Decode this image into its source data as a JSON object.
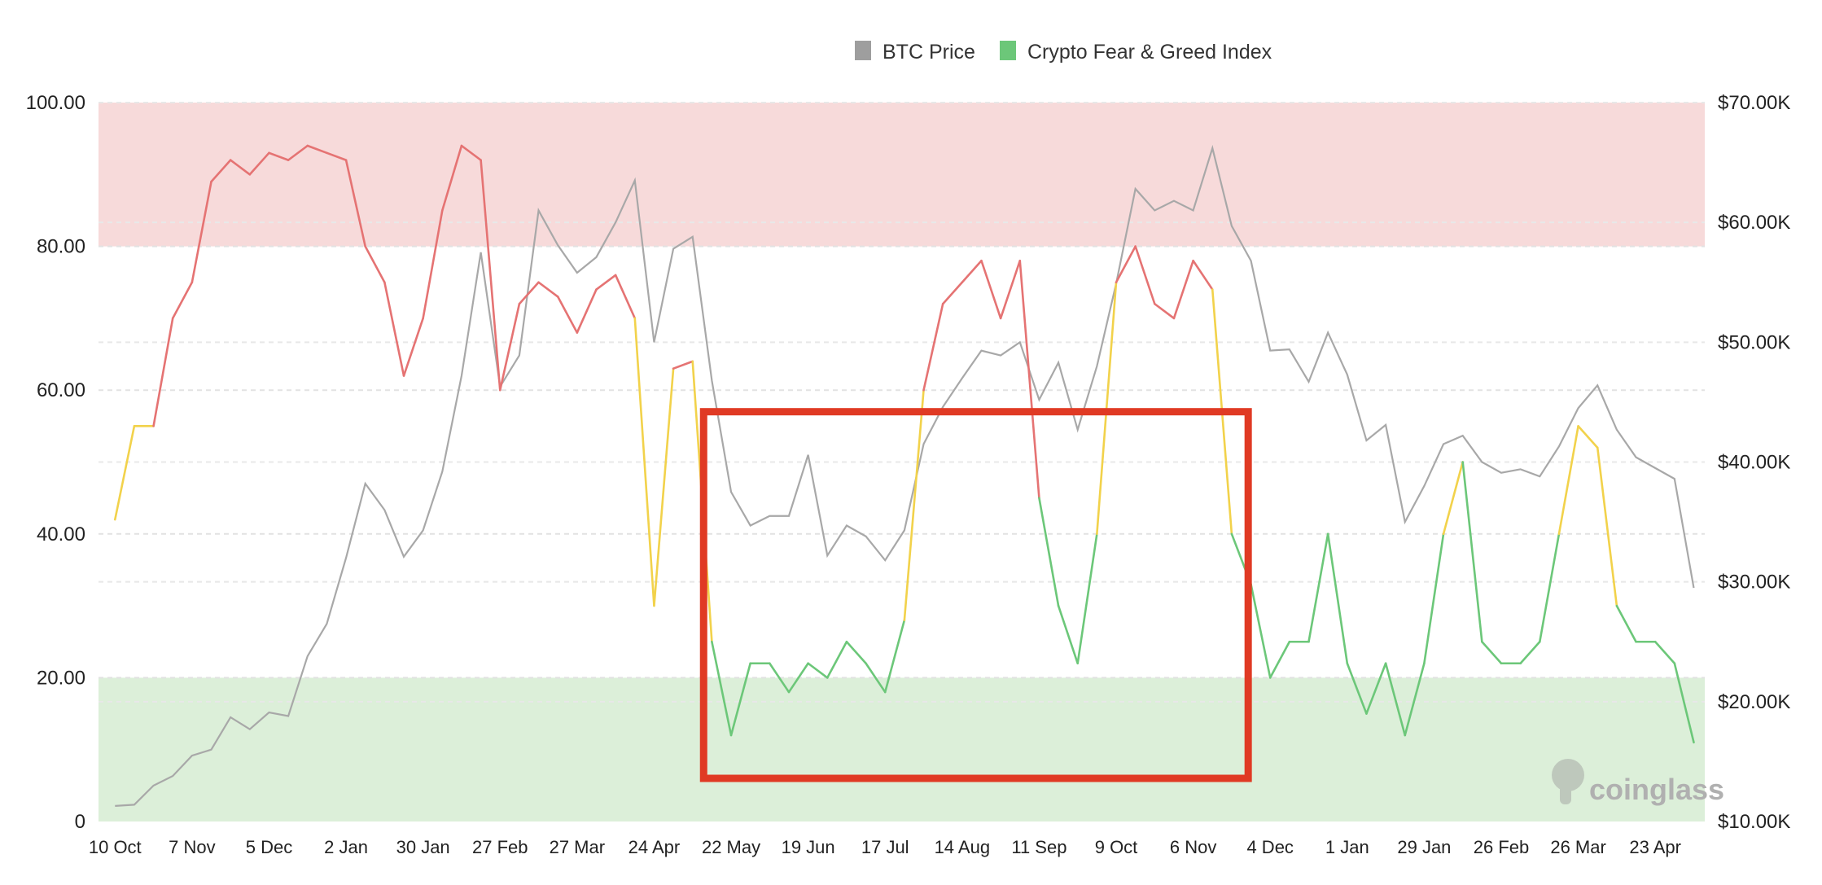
{
  "chart_data": {
    "type": "line",
    "title": "",
    "legend": {
      "position": "top-center",
      "items": [
        {
          "name": "BTC Price",
          "color": "#9e9e9e"
        },
        {
          "name": "Crypto Fear & Greed Index",
          "color": "#6cc779"
        }
      ]
    },
    "x_tick_labels": [
      "10 Oct",
      "7 Nov",
      "5 Dec",
      "2 Jan",
      "30 Jan",
      "27 Feb",
      "27 Mar",
      "24 Apr",
      "22 May",
      "19 Jun",
      "17 Jul",
      "14 Aug",
      "11 Sep",
      "9 Oct",
      "6 Nov",
      "4 Dec",
      "1 Jan",
      "29 Jan",
      "26 Feb",
      "26 Mar",
      "23 Apr"
    ],
    "x_tick_interval_days": 28,
    "x_range_days": [
      -6,
      578
    ],
    "left_axis": {
      "label": "",
      "range": [
        0,
        100
      ],
      "ticks": [
        "0",
        "20.00",
        "40.00",
        "60.00",
        "80.00",
        "100.00"
      ]
    },
    "right_axis": {
      "label": "",
      "range": [
        10,
        70
      ],
      "unit": "K USD",
      "ticks": [
        "$10.00K",
        "$20.00K",
        "$30.00K",
        "$40.00K",
        "$50.00K",
        "$60.00K",
        "$70.00K"
      ]
    },
    "zones": [
      {
        "name": "greed",
        "from": 80,
        "to": 100,
        "color": "#f7dada"
      },
      {
        "name": "fear",
        "from": 0,
        "to": 20,
        "color": "#dcefd9"
      }
    ],
    "line_colors": {
      "greed": "#e57373",
      "neutral": "#f2d24b",
      "fear": "#6cc779",
      "btc": "#a8a8a8"
    },
    "days": [
      0,
      7,
      14,
      21,
      28,
      35,
      42,
      49,
      56,
      63,
      70,
      77,
      84,
      91,
      98,
      105,
      112,
      119,
      126,
      133,
      140,
      147,
      154,
      161,
      168,
      175,
      182,
      189,
      196,
      203,
      210,
      217,
      224,
      231,
      238,
      245,
      252,
      259,
      266,
      273,
      280,
      287,
      294,
      301,
      308,
      315,
      322,
      329,
      336,
      343,
      350,
      357,
      364,
      371,
      378,
      385,
      392,
      399,
      406,
      413,
      420,
      427,
      434,
      441,
      448,
      455,
      462,
      469,
      476,
      483,
      490,
      497,
      504,
      511,
      518,
      525,
      532,
      539,
      546,
      553,
      560,
      567,
      574
    ],
    "series": [
      {
        "name": "BTC Price",
        "axis": "right",
        "values": [
          11.3,
          11.4,
          13.0,
          13.8,
          15.5,
          16.0,
          18.7,
          17.7,
          19.1,
          18.8,
          23.8,
          26.5,
          32.0,
          38.2,
          36.0,
          32.1,
          34.3,
          39.2,
          47.2,
          57.5,
          46.3,
          48.9,
          61.0,
          58.1,
          55.8,
          57.1,
          60.0,
          63.5,
          50.0,
          57.8,
          58.8,
          46.8,
          37.5,
          34.7,
          35.5,
          35.5,
          40.6,
          32.2,
          34.7,
          33.8,
          31.8,
          34.3,
          41.5,
          44.6,
          47.0,
          49.3,
          48.9,
          50.0,
          45.2,
          48.3,
          42.7,
          48.0,
          54.9,
          62.8,
          61.0,
          61.8,
          61.0,
          66.2,
          59.7,
          56.8,
          49.3,
          49.4,
          46.7,
          50.8,
          47.3,
          41.8,
          43.1,
          35.0,
          38.0,
          41.5,
          42.2,
          40.0,
          39.1,
          39.4,
          38.8,
          41.3,
          44.5,
          46.4,
          42.7,
          40.4,
          39.5,
          38.6,
          29.5
        ]
      },
      {
        "name": "Crypto Fear & Greed Index",
        "axis": "left",
        "values": [
          42,
          55,
          55,
          70,
          75,
          89,
          92,
          90,
          93,
          92,
          94,
          93,
          92,
          80,
          75,
          62,
          70,
          85,
          94,
          92,
          60,
          72,
          75,
          73,
          68,
          74,
          76,
          70,
          30,
          63,
          64,
          25,
          12,
          22,
          22,
          18,
          22,
          20,
          25,
          22,
          18,
          28,
          60,
          72,
          75,
          78,
          70,
          78,
          45,
          30,
          22,
          40,
          75,
          80,
          72,
          70,
          78,
          74,
          40,
          33,
          20,
          25,
          25,
          40,
          22,
          15,
          22,
          12,
          22,
          40,
          50,
          25,
          22,
          22,
          25,
          40,
          55,
          52,
          30,
          25,
          25,
          22,
          11
        ]
      }
    ],
    "annotation": {
      "type": "highlight-box",
      "color": "#e03a24",
      "x_range_days": [
        214,
        412
      ],
      "y_range": [
        6,
        57
      ]
    },
    "watermark": "coinglass"
  }
}
